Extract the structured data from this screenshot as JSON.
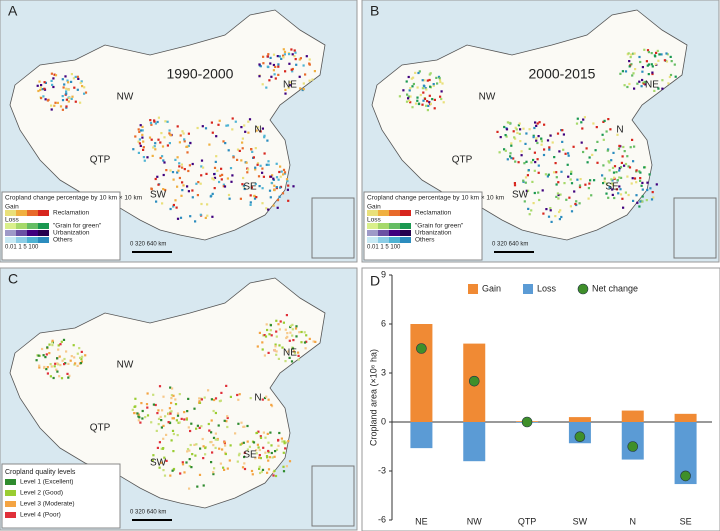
{
  "panels": [
    {
      "label": "A",
      "title": "1990-2000",
      "regions": [
        "NE",
        "NW",
        "QTP",
        "SW",
        "N",
        "SE"
      ],
      "legend": {
        "title": "Cropland change percentage by 10 km × 10 km",
        "groups": [
          {
            "label": "Gain",
            "items": [
              {
                "label": "Reclamation",
                "colors": [
                  "#e9e07a",
                  "#f0b040",
                  "#e86a2a",
                  "#d7261e"
                ]
              }
            ]
          },
          {
            "label": "Loss",
            "items": [
              {
                "label": "\"Grain for green\"",
                "colors": [
                  "#d9ef8b",
                  "#a6d96a",
                  "#66bd63",
                  "#1a9850"
                ]
              },
              {
                "label": "Urbanization",
                "colors": [
                  "#9e9ac8",
                  "#6a51a3",
                  "#3f007d",
                  "#25004d"
                ]
              },
              {
                "label": "Others",
                "colors": [
                  "#c7e9f4",
                  "#8ccde6",
                  "#4eb3d3",
                  "#2b8cbe"
                ]
              }
            ]
          }
        ],
        "scale": "0.01  1   5  100"
      },
      "scalebar": "0    320    640 km"
    },
    {
      "label": "B",
      "title": "2000-2015",
      "regions": [
        "NE",
        "NW",
        "QTP",
        "SW",
        "N",
        "SE"
      ],
      "legend": {
        "title": "Cropland change percentage by 10 km × 10 km",
        "groups": [
          {
            "label": "Gain",
            "items": [
              {
                "label": "Reclamation",
                "colors": [
                  "#e9e07a",
                  "#f0b040",
                  "#e86a2a",
                  "#d7261e"
                ]
              }
            ]
          },
          {
            "label": "Loss",
            "items": [
              {
                "label": "\"Grain for green\"",
                "colors": [
                  "#d9ef8b",
                  "#a6d96a",
                  "#66bd63",
                  "#1a9850"
                ]
              },
              {
                "label": "Urbanization",
                "colors": [
                  "#9e9ac8",
                  "#6a51a3",
                  "#3f007d",
                  "#25004d"
                ]
              },
              {
                "label": "Others",
                "colors": [
                  "#c7e9f4",
                  "#8ccde6",
                  "#4eb3d3",
                  "#2b8cbe"
                ]
              }
            ]
          }
        ],
        "scale": "0.01  1   5  100"
      },
      "scalebar": "0    320    640 km"
    },
    {
      "label": "C",
      "regions": [
        "NE",
        "NW",
        "QTP",
        "SW",
        "N",
        "SE"
      ],
      "legend": {
        "title": "Cropland quality levels",
        "groups": [
          {
            "items": [
              {
                "label": "Level 1 (Excellent)",
                "colors": [
                  "#2e8b2e"
                ]
              },
              {
                "label": "Level 2 (Good)",
                "colors": [
                  "#9acd32"
                ]
              },
              {
                "label": "Level 3 (Moderate)",
                "colors": [
                  "#f4a442"
                ]
              },
              {
                "label": "Level 4 (Poor)",
                "colors": [
                  "#e0303a"
                ]
              }
            ]
          }
        ]
      },
      "scalebar": "0    320    640 km"
    }
  ],
  "chart_data": {
    "type": "bar",
    "panel_label": "D",
    "y_label": "Cropland area (×10⁶ ha)",
    "categories": [
      "NE",
      "NW",
      "QTP",
      "SW",
      "N",
      "SE"
    ],
    "series": [
      {
        "name": "Gain",
        "color": "#f08a34",
        "mark": "bar",
        "values": [
          6.0,
          4.8,
          0.05,
          0.3,
          0.7,
          0.5
        ]
      },
      {
        "name": "Loss",
        "color": "#5b9bd5",
        "mark": "bar",
        "values": [
          -1.6,
          -2.4,
          -0.05,
          -1.3,
          -2.3,
          -3.8
        ]
      },
      {
        "name": "Net change",
        "color": "#3f8f2a",
        "mark": "dot",
        "values": [
          4.5,
          2.5,
          0.0,
          -0.9,
          -1.5,
          -3.3
        ]
      }
    ],
    "ylim": [
      -6,
      9
    ],
    "yticks": [
      -6,
      -3,
      0,
      3,
      6,
      9
    ]
  }
}
